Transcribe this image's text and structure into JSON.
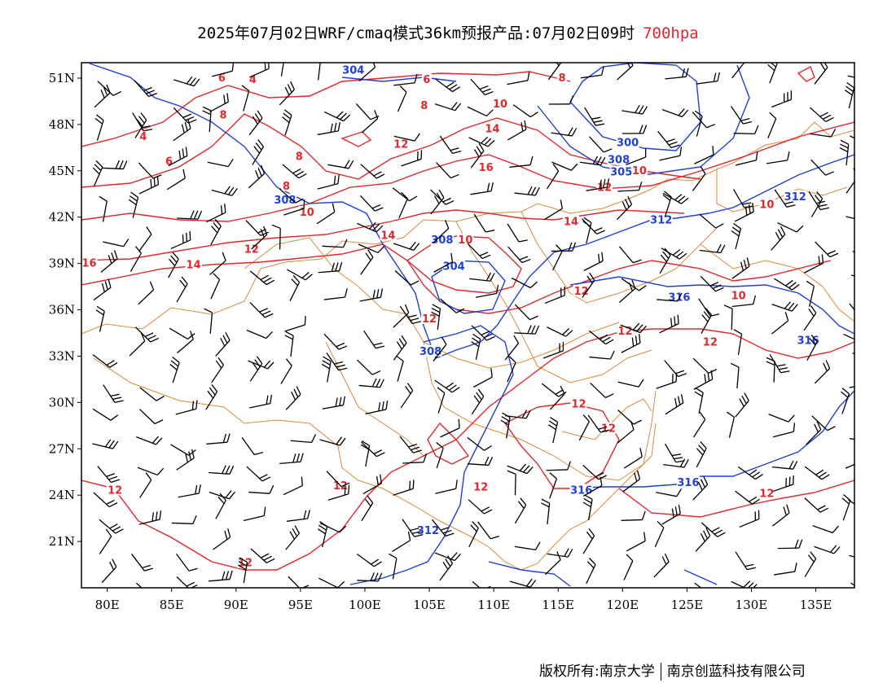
{
  "title": {
    "main": "2025年07月02日WRF/cmaq模式36km预报产品:07月02日09时",
    "level": "700hpa"
  },
  "axes": {
    "lat_ticks": [
      "51N",
      "48N",
      "45N",
      "42N",
      "39N",
      "36N",
      "33N",
      "30N",
      "27N",
      "24N",
      "21N"
    ],
    "lon_ticks": [
      "80E",
      "85E",
      "90E",
      "95E",
      "100E",
      "105E",
      "110E",
      "115E",
      "120E",
      "125E",
      "130E",
      "135E"
    ]
  },
  "colors": {
    "temperature_contour": "#e0282e",
    "height_contour": "#1f3fd6",
    "border": "#d98a3a",
    "wind_barb": "#000000"
  },
  "chart_data": {
    "type": "map",
    "region": {
      "lon_range": [
        78,
        138
      ],
      "lat_range": [
        18,
        52
      ]
    },
    "temperature_labels": [
      {
        "text": "6",
        "lon": 88.9,
        "lat": 51.0
      },
      {
        "text": "4",
        "lon": 91.3,
        "lat": 50.9
      },
      {
        "text": "6",
        "lon": 104.8,
        "lat": 50.9
      },
      {
        "text": "8",
        "lon": 115.3,
        "lat": 51.0
      },
      {
        "text": "8",
        "lon": 89.0,
        "lat": 48.6
      },
      {
        "text": "4",
        "lon": 82.8,
        "lat": 47.2
      },
      {
        "text": "8",
        "lon": 104.6,
        "lat": 49.2
      },
      {
        "text": "10",
        "lon": 110.5,
        "lat": 49.3
      },
      {
        "text": "14",
        "lon": 109.9,
        "lat": 47.7
      },
      {
        "text": "12",
        "lon": 102.8,
        "lat": 46.7
      },
      {
        "text": "6",
        "lon": 84.8,
        "lat": 45.6
      },
      {
        "text": "8",
        "lon": 94.9,
        "lat": 45.9
      },
      {
        "text": "16",
        "lon": 109.4,
        "lat": 45.2
      },
      {
        "text": "8",
        "lon": 93.9,
        "lat": 44.0
      },
      {
        "text": "10",
        "lon": 95.5,
        "lat": 42.3
      },
      {
        "text": "10",
        "lon": 121.3,
        "lat": 45.0
      },
      {
        "text": "12",
        "lon": 118.6,
        "lat": 43.9
      },
      {
        "text": "10",
        "lon": 131.2,
        "lat": 42.8
      },
      {
        "text": "14",
        "lon": 116.0,
        "lat": 41.7
      },
      {
        "text": "14",
        "lon": 101.8,
        "lat": 40.8
      },
      {
        "text": "10",
        "lon": 107.8,
        "lat": 40.5
      },
      {
        "text": "12",
        "lon": 91.2,
        "lat": 39.9
      },
      {
        "text": "14",
        "lon": 86.7,
        "lat": 38.9
      },
      {
        "text": "16",
        "lon": 78.6,
        "lat": 39.0
      },
      {
        "text": "12",
        "lon": 116.8,
        "lat": 37.2
      },
      {
        "text": "10",
        "lon": 129.0,
        "lat": 36.9
      },
      {
        "text": "12",
        "lon": 105.0,
        "lat": 35.4
      },
      {
        "text": "12",
        "lon": 120.2,
        "lat": 34.6
      },
      {
        "text": "12",
        "lon": 126.8,
        "lat": 33.9
      },
      {
        "text": "12",
        "lon": 116.6,
        "lat": 29.9
      },
      {
        "text": "12",
        "lon": 118.9,
        "lat": 28.3
      },
      {
        "text": "12",
        "lon": 98.1,
        "lat": 24.6
      },
      {
        "text": "12",
        "lon": 109.0,
        "lat": 24.5
      },
      {
        "text": "12",
        "lon": 80.6,
        "lat": 24.3
      },
      {
        "text": "12",
        "lon": 131.2,
        "lat": 24.1
      },
      {
        "text": "12",
        "lon": 90.7,
        "lat": 19.6
      }
    ],
    "height_labels": [
      {
        "text": "304",
        "lon": 99.1,
        "lat": 51.5
      },
      {
        "text": "300",
        "lon": 120.4,
        "lat": 46.8
      },
      {
        "text": "308",
        "lon": 119.7,
        "lat": 45.7
      },
      {
        "text": "305",
        "lon": 119.9,
        "lat": 44.9
      },
      {
        "text": "312",
        "lon": 133.4,
        "lat": 43.3
      },
      {
        "text": "308",
        "lon": 93.8,
        "lat": 43.1
      },
      {
        "text": "312",
        "lon": 123.0,
        "lat": 41.8
      },
      {
        "text": "308",
        "lon": 106.0,
        "lat": 40.5
      },
      {
        "text": "304",
        "lon": 106.9,
        "lat": 38.8
      },
      {
        "text": "316",
        "lon": 124.4,
        "lat": 36.8
      },
      {
        "text": "316",
        "lon": 134.4,
        "lat": 34.0
      },
      {
        "text": "308",
        "lon": 105.1,
        "lat": 33.3
      },
      {
        "text": "316",
        "lon": 125.1,
        "lat": 24.8
      },
      {
        "text": "316",
        "lon": 116.8,
        "lat": 24.3
      },
      {
        "text": "312",
        "lon": 104.9,
        "lat": 21.7
      }
    ]
  },
  "copyright": {
    "owner": "版权所有:南京大学",
    "company": "南京创蓝科技有限公司"
  }
}
